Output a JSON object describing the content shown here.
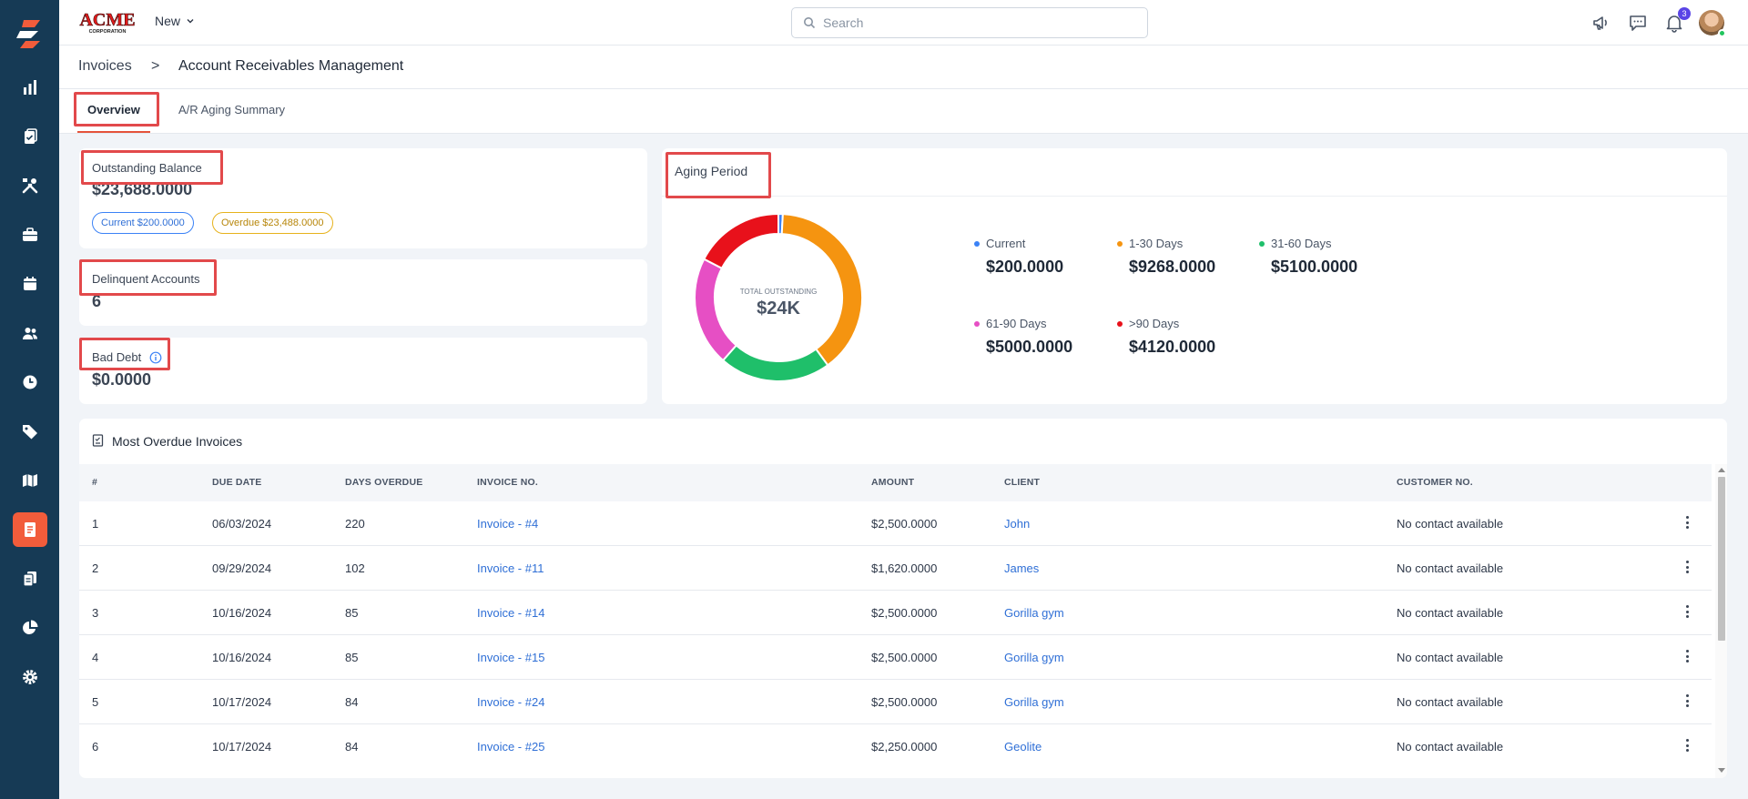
{
  "app": {
    "brand_line1": "ACME",
    "brand_line2": "CORPORATION",
    "new_label": "New",
    "search_placeholder": "Search",
    "notification_count": "3"
  },
  "sidebar": {
    "items": [
      {
        "icon": "bar-chart-icon"
      },
      {
        "icon": "clipboard-check-icon"
      },
      {
        "icon": "tools-icon"
      },
      {
        "icon": "briefcase-icon"
      },
      {
        "icon": "calendar-icon"
      },
      {
        "icon": "users-icon"
      },
      {
        "icon": "clock-icon"
      },
      {
        "icon": "tag-icon"
      },
      {
        "icon": "map-icon"
      },
      {
        "icon": "invoice-icon",
        "active": true
      },
      {
        "icon": "documents-icon"
      },
      {
        "icon": "pie-chart-icon"
      },
      {
        "icon": "gear-icon"
      }
    ]
  },
  "breadcrumb": {
    "parent": "Invoices",
    "separator": ">",
    "current": "Account Receivables Management"
  },
  "tabs": [
    {
      "label": "Overview",
      "active": true
    },
    {
      "label": "A/R Aging Summary",
      "active": false
    }
  ],
  "outstanding": {
    "label": "Outstanding Balance",
    "value": "$23,688.0000",
    "current_pill": "Current $200.0000",
    "overdue_pill": "Overdue $23,488.0000"
  },
  "delinquent": {
    "label": "Delinquent Accounts",
    "value": "6"
  },
  "bad_debt": {
    "label": "Bad Debt",
    "value": "$0.0000"
  },
  "aging": {
    "title": "Aging Period",
    "center_label": "TOTAL OUTSTANDING",
    "center_value": "$24K",
    "legend": [
      {
        "label": "Current",
        "value": "$200.0000",
        "color": "#3b82f6"
      },
      {
        "label": "1-30 Days",
        "value": "$9268.0000",
        "color": "#f59410"
      },
      {
        "label": "31-60 Days",
        "value": "$5100.0000",
        "color": "#1fbf6a"
      },
      {
        "label": "61-90 Days",
        "value": "$5000.0000",
        "color": "#e64fc4"
      },
      {
        "label": ">90 Days",
        "value": "$4120.0000",
        "color": "#e8111b"
      }
    ],
    "segments": [
      200,
      9268,
      5100,
      5000,
      4120
    ]
  },
  "table": {
    "title": "Most Overdue Invoices",
    "headers": [
      "#",
      "DUE DATE",
      "DAYS OVERDUE",
      "INVOICE NO.",
      "AMOUNT",
      "CLIENT",
      "CUSTOMER NO."
    ],
    "rows": [
      {
        "num": "1",
        "due": "06/03/2024",
        "days": "220",
        "invoice": "Invoice - #4",
        "amount": "$2,500.0000",
        "client": "John",
        "customer": "No contact available"
      },
      {
        "num": "2",
        "due": "09/29/2024",
        "days": "102",
        "invoice": "Invoice - #11",
        "amount": "$1,620.0000",
        "client": "James",
        "customer": "No contact available"
      },
      {
        "num": "3",
        "due": "10/16/2024",
        "days": "85",
        "invoice": "Invoice - #14",
        "amount": "$2,500.0000",
        "client": "Gorilla gym",
        "customer": "No contact available"
      },
      {
        "num": "4",
        "due": "10/16/2024",
        "days": "85",
        "invoice": "Invoice - #15",
        "amount": "$2,500.0000",
        "client": "Gorilla gym",
        "customer": "No contact available"
      },
      {
        "num": "5",
        "due": "10/17/2024",
        "days": "84",
        "invoice": "Invoice - #24",
        "amount": "$2,500.0000",
        "client": "Gorilla gym",
        "customer": "No contact available"
      },
      {
        "num": "6",
        "due": "10/17/2024",
        "days": "84",
        "invoice": "Invoice - #25",
        "amount": "$2,250.0000",
        "client": "Geolite",
        "customer": "No contact available"
      }
    ]
  }
}
